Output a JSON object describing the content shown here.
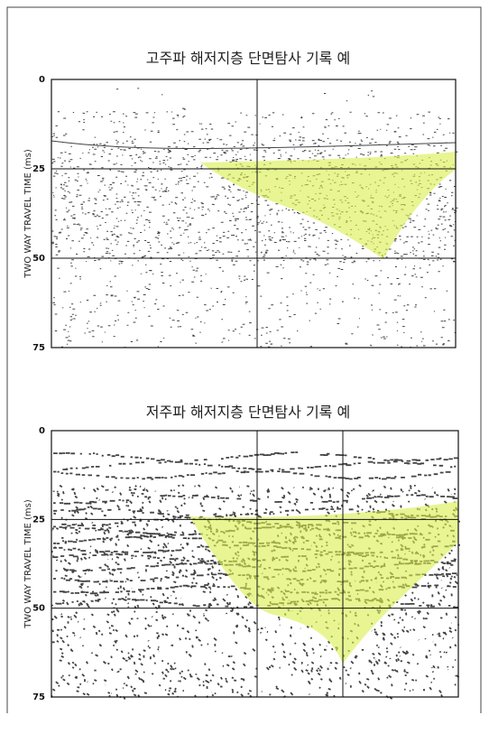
{
  "panels": [
    {
      "title": "고주파 해저지층 단면탐사 기록 예",
      "y_axis_label": "TWO WAY TRAVEL TIME (ms)",
      "y_ticks": [
        0,
        25,
        50,
        75
      ]
    },
    {
      "title": "저주파 해저지층 단면탐사 기록 예",
      "y_axis_label": "TWO WAY TRAVEL TIME (ms)",
      "y_ticks": [
        0,
        25,
        50,
        75
      ]
    }
  ]
}
